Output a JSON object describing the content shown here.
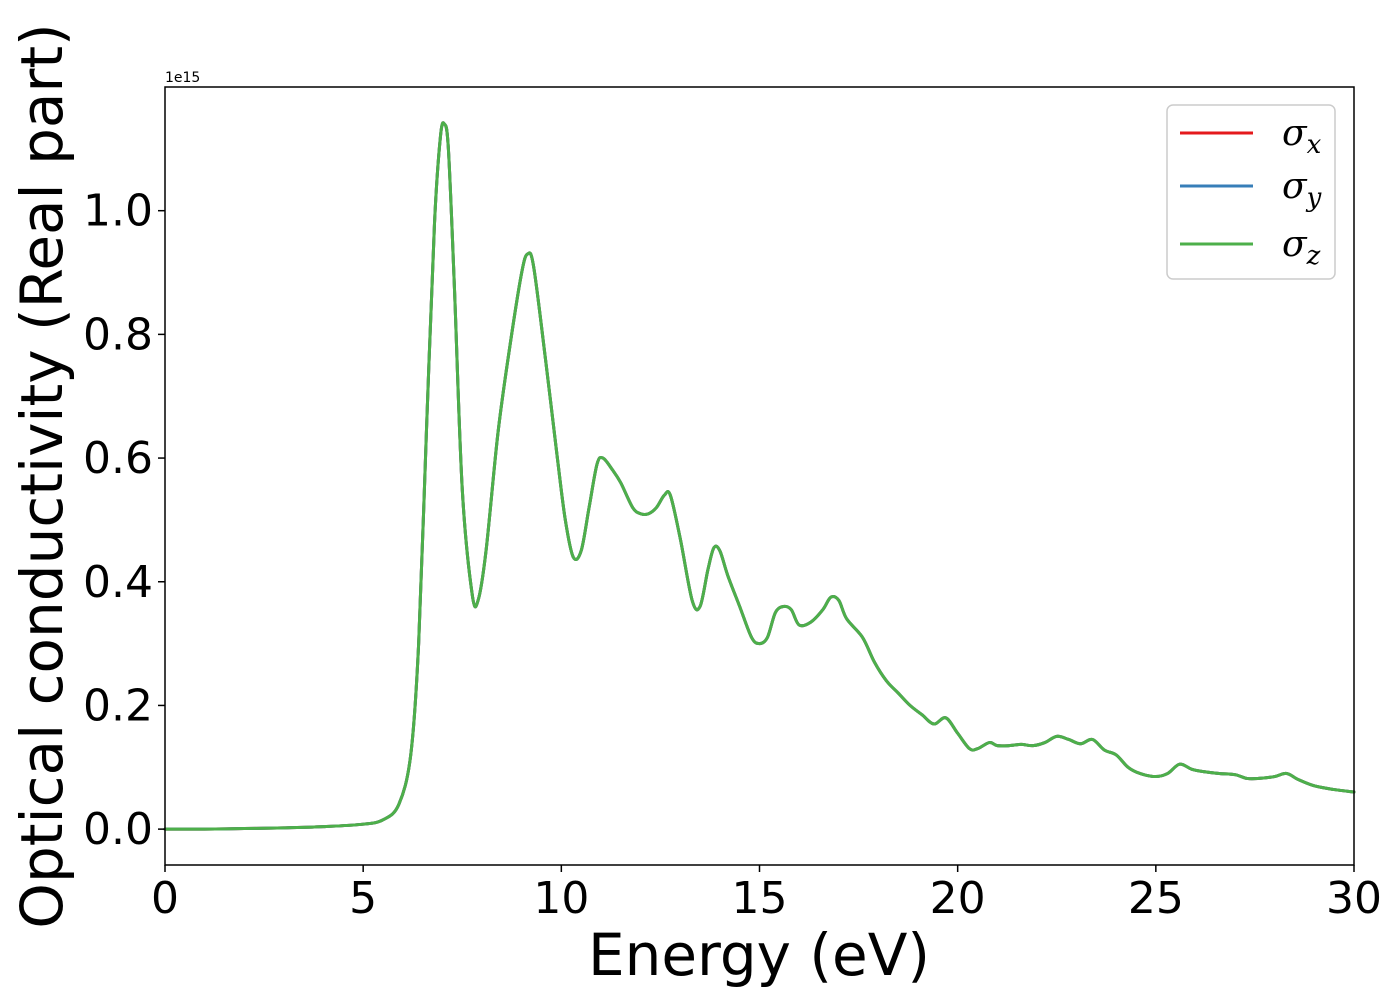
{
  "chart_data": {
    "type": "line",
    "title": "",
    "xlabel": "Energy (eV)",
    "ylabel": "Optical conductivity (Real part)",
    "y_multiplier_label": "1e15",
    "xlim": [
      0,
      30
    ],
    "ylim": [
      -0.058,
      1.2
    ],
    "xticks": [
      0,
      5,
      10,
      15,
      20,
      25,
      30
    ],
    "yticks": [
      "0.0",
      "0.2",
      "0.4",
      "0.6",
      "0.8",
      "1.0"
    ],
    "grid": false,
    "legend_position": "top-right",
    "x": [
      0,
      1,
      2,
      3,
      4,
      5,
      5.5,
      5.9,
      6.2,
      6.4,
      6.6,
      6.8,
      6.95,
      7.05,
      7.15,
      7.3,
      7.5,
      7.75,
      7.9,
      8.1,
      8.4,
      8.7,
      9.0,
      9.15,
      9.3,
      9.6,
      9.9,
      10.1,
      10.3,
      10.5,
      10.7,
      10.9,
      11.05,
      11.3,
      11.5,
      11.8,
      12.0,
      12.2,
      12.4,
      12.6,
      12.75,
      13.0,
      13.3,
      13.5,
      13.7,
      13.85,
      14.0,
      14.2,
      14.5,
      14.8,
      15.0,
      15.2,
      15.4,
      15.6,
      15.8,
      16.0,
      16.3,
      16.6,
      16.8,
      17.0,
      17.2,
      17.6,
      17.9,
      18.2,
      18.5,
      18.8,
      19.1,
      19.4,
      19.7,
      20.0,
      20.3,
      20.5,
      20.8,
      21.0,
      21.3,
      21.6,
      21.9,
      22.2,
      22.5,
      22.8,
      23.1,
      23.4,
      23.7,
      24.0,
      24.3,
      24.6,
      25.0,
      25.3,
      25.6,
      25.9,
      26.2,
      26.6,
      27.0,
      27.3,
      27.6,
      28.0,
      28.3,
      28.6,
      29.0,
      29.5,
      30.0
    ],
    "series": [
      {
        "name": "σx",
        "color": "#e41a1c",
        "values": [
          0.0,
          0.0,
          0.001,
          0.002,
          0.004,
          0.008,
          0.015,
          0.04,
          0.12,
          0.3,
          0.65,
          0.98,
          1.12,
          1.14,
          1.1,
          0.88,
          0.55,
          0.38,
          0.37,
          0.45,
          0.64,
          0.78,
          0.9,
          0.93,
          0.91,
          0.76,
          0.6,
          0.5,
          0.44,
          0.45,
          0.52,
          0.59,
          0.6,
          0.58,
          0.56,
          0.52,
          0.51,
          0.51,
          0.52,
          0.54,
          0.54,
          0.47,
          0.37,
          0.36,
          0.42,
          0.455,
          0.45,
          0.41,
          0.36,
          0.31,
          0.3,
          0.31,
          0.35,
          0.36,
          0.355,
          0.33,
          0.335,
          0.355,
          0.375,
          0.37,
          0.34,
          0.31,
          0.27,
          0.24,
          0.22,
          0.2,
          0.185,
          0.17,
          0.18,
          0.155,
          0.13,
          0.13,
          0.14,
          0.135,
          0.135,
          0.137,
          0.135,
          0.14,
          0.15,
          0.145,
          0.138,
          0.145,
          0.128,
          0.12,
          0.1,
          0.09,
          0.085,
          0.09,
          0.105,
          0.097,
          0.093,
          0.09,
          0.088,
          0.082,
          0.082,
          0.085,
          0.09,
          0.08,
          0.07,
          0.064,
          0.06
        ]
      },
      {
        "name": "σy",
        "color": "#377eb8",
        "values": [
          0.0,
          0.0,
          0.001,
          0.002,
          0.004,
          0.008,
          0.015,
          0.04,
          0.12,
          0.3,
          0.65,
          0.98,
          1.12,
          1.14,
          1.1,
          0.88,
          0.55,
          0.38,
          0.37,
          0.45,
          0.64,
          0.78,
          0.9,
          0.93,
          0.91,
          0.76,
          0.6,
          0.5,
          0.44,
          0.45,
          0.52,
          0.59,
          0.6,
          0.58,
          0.56,
          0.52,
          0.51,
          0.51,
          0.52,
          0.54,
          0.54,
          0.47,
          0.37,
          0.36,
          0.42,
          0.455,
          0.45,
          0.41,
          0.36,
          0.31,
          0.3,
          0.31,
          0.35,
          0.36,
          0.355,
          0.33,
          0.335,
          0.355,
          0.375,
          0.37,
          0.34,
          0.31,
          0.27,
          0.24,
          0.22,
          0.2,
          0.185,
          0.17,
          0.18,
          0.155,
          0.13,
          0.13,
          0.14,
          0.135,
          0.135,
          0.137,
          0.135,
          0.14,
          0.15,
          0.145,
          0.138,
          0.145,
          0.128,
          0.12,
          0.1,
          0.09,
          0.085,
          0.09,
          0.105,
          0.097,
          0.093,
          0.09,
          0.088,
          0.082,
          0.082,
          0.085,
          0.09,
          0.08,
          0.07,
          0.064,
          0.06
        ]
      },
      {
        "name": "σz",
        "color": "#4daf4a",
        "values": [
          0.0,
          0.0,
          0.001,
          0.002,
          0.004,
          0.008,
          0.015,
          0.04,
          0.12,
          0.3,
          0.65,
          0.98,
          1.12,
          1.14,
          1.1,
          0.88,
          0.55,
          0.38,
          0.37,
          0.45,
          0.64,
          0.78,
          0.9,
          0.93,
          0.91,
          0.76,
          0.6,
          0.5,
          0.44,
          0.45,
          0.52,
          0.59,
          0.6,
          0.58,
          0.56,
          0.52,
          0.51,
          0.51,
          0.52,
          0.54,
          0.54,
          0.47,
          0.37,
          0.36,
          0.42,
          0.455,
          0.45,
          0.41,
          0.36,
          0.31,
          0.3,
          0.31,
          0.35,
          0.36,
          0.355,
          0.33,
          0.335,
          0.355,
          0.375,
          0.37,
          0.34,
          0.31,
          0.27,
          0.24,
          0.22,
          0.2,
          0.185,
          0.17,
          0.18,
          0.155,
          0.13,
          0.13,
          0.14,
          0.135,
          0.135,
          0.137,
          0.135,
          0.14,
          0.15,
          0.145,
          0.138,
          0.145,
          0.128,
          0.12,
          0.1,
          0.09,
          0.085,
          0.09,
          0.105,
          0.097,
          0.093,
          0.09,
          0.088,
          0.082,
          0.082,
          0.085,
          0.09,
          0.08,
          0.07,
          0.064,
          0.06
        ]
      }
    ]
  }
}
